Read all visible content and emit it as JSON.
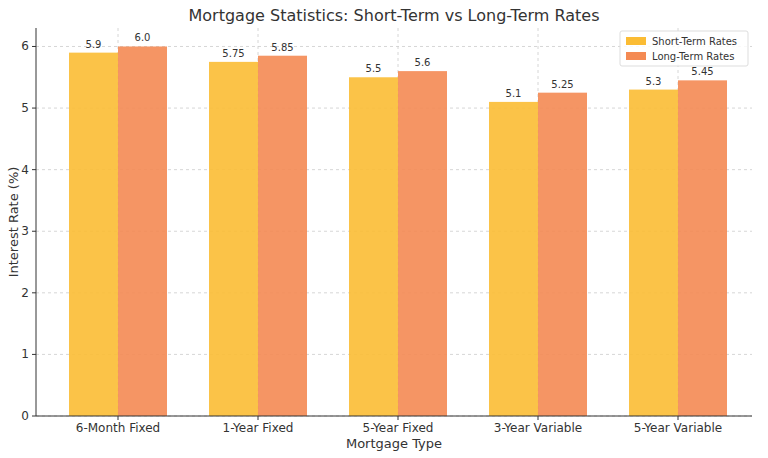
{
  "chart_data": {
    "type": "bar",
    "title": "Mortgage Statistics: Short-Term vs Long-Term Rates",
    "x_label": "Mortgage Type",
    "y_label": "Interest Rate (%)",
    "categories": [
      "6-Month Fixed",
      "1-Year Fixed",
      "5-Year Fixed",
      "3-Year Variable",
      "5-Year Variable"
    ],
    "series": [
      {
        "name": "Short-Term Rates",
        "color": "#fbbc34",
        "values": [
          5.9,
          5.75,
          5.5,
          5.1,
          5.3
        ],
        "value_labels": [
          "5.9",
          "5.75",
          "5.5",
          "5.1",
          "5.3"
        ]
      },
      {
        "name": "Long-Term Rates",
        "color": "#f48a53",
        "values": [
          6.0,
          5.85,
          5.6,
          5.25,
          5.45
        ],
        "value_labels": [
          "6.0",
          "5.85",
          "5.6",
          "5.25",
          "5.45"
        ]
      }
    ],
    "ylim": [
      0,
      6.3
    ],
    "yticks": [
      0,
      1,
      2,
      3,
      4,
      5,
      6
    ],
    "grid": true,
    "legend": "upper right",
    "data_labels": true
  }
}
